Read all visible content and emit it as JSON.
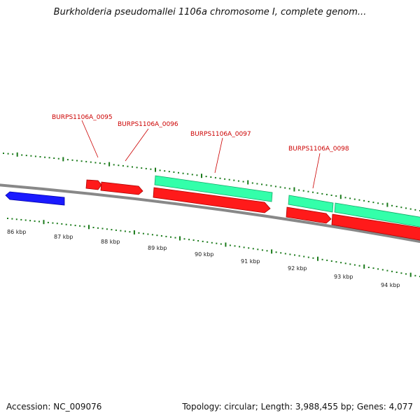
{
  "title": "Burkholderia pseudomallei 1106a chromosome I, complete genom...",
  "footer": {
    "accession": "Accession: NC_009076",
    "stats": "Topology: circular; Length: 3,988,455 bp; Genes: 4,077"
  },
  "scale": {
    "unit": "kbp",
    "labels": [
      "86 kbp",
      "87 kbp",
      "88 kbp",
      "89 kbp",
      "90 kbp",
      "91 kbp",
      "92 kbp",
      "93 kbp",
      "94 kbp"
    ]
  },
  "gene_labels": [
    "BURPS1106A_0095",
    "BURPS1106A_0096",
    "BURPS1106A_0097",
    "BURPS1106A_0098"
  ],
  "colors": {
    "forward_cds": "#ff1a1a",
    "forward_rna": "#33ffaa",
    "reverse_cds": "#1a1aff",
    "backbone": "#888888",
    "tick": "#1a7a1a",
    "label": "#cc0000"
  }
}
